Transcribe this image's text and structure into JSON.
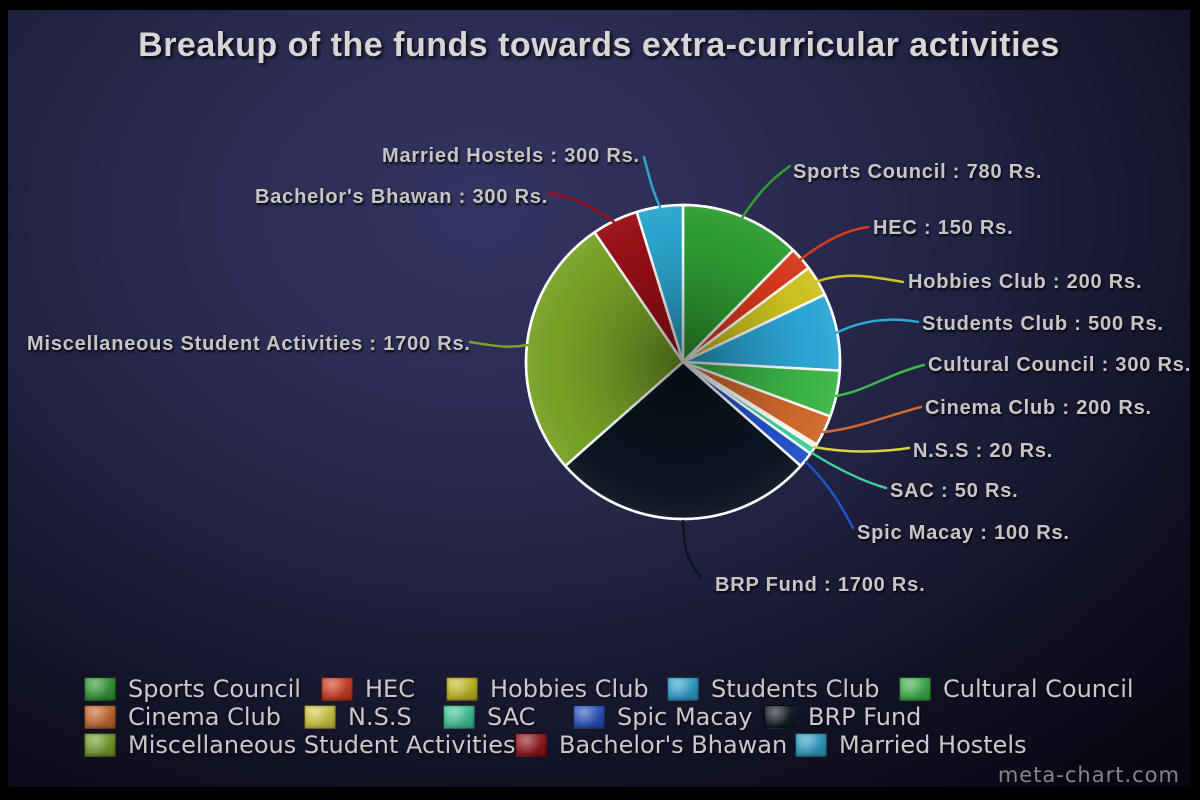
{
  "title": "Breakup of the funds towards extra-curricular activities",
  "watermark": "meta-chart.com",
  "chart_data": {
    "type": "pie",
    "title": "Breakup of the funds towards extra-curricular activities",
    "unit": "Rs.",
    "total": 6300,
    "start_angle": "12-o'clock",
    "direction": "clockwise",
    "legend_position": "bottom",
    "background": {
      "panel_top": "#343461",
      "panel_bottom": "#070712",
      "frame": "#000000"
    },
    "slices": [
      {
        "label": "Sports Council",
        "value": 780,
        "color": "#2f9e33",
        "callout": "Sports Council : 780 Rs."
      },
      {
        "label": "HEC",
        "value": 150,
        "color": "#d93a1c",
        "callout": "HEC : 150 Rs."
      },
      {
        "label": "Hobbies Club",
        "value": 200,
        "color": "#cfc41f",
        "callout": "Hobbies Club : 200 Rs."
      },
      {
        "label": "Students Club",
        "value": 500,
        "color": "#2da8d8",
        "callout": "Students Club : 500 Rs."
      },
      {
        "label": "Cultural Council",
        "value": 300,
        "color": "#3cb848",
        "callout": "Cultural Council : 300 Rs."
      },
      {
        "label": "Cinema Club",
        "value": 200,
        "color": "#d2692c",
        "callout": "Cinema Club : 200 Rs."
      },
      {
        "label": "N.S.S",
        "value": 20,
        "color": "#ddd33f",
        "callout": "N.S.S : 20 Rs."
      },
      {
        "label": "SAC",
        "value": 50,
        "color": "#3ecf9a",
        "callout": "SAC : 50 Rs."
      },
      {
        "label": "Spic Macay",
        "value": 100,
        "color": "#2253c9",
        "callout": "Spic Macay : 100 Rs."
      },
      {
        "label": "BRP Fund",
        "value": 1700,
        "color": "#0b1520",
        "callout": "BRP Fund : 1700 Rs."
      },
      {
        "label": "Miscellaneous Student Activities",
        "value": 1700,
        "color": "#78a427",
        "callout": "Miscellaneous Student Activities : 1700 Rs."
      },
      {
        "label": "Bachelor's Bhawan",
        "value": 300,
        "color": "#991016",
        "callout": "Bachelor's Bhawan : 300 Rs."
      },
      {
        "label": "Married Hostels",
        "value": 300,
        "color": "#2ba6cf",
        "callout": "Married Hostels : 300 Rs."
      }
    ]
  }
}
